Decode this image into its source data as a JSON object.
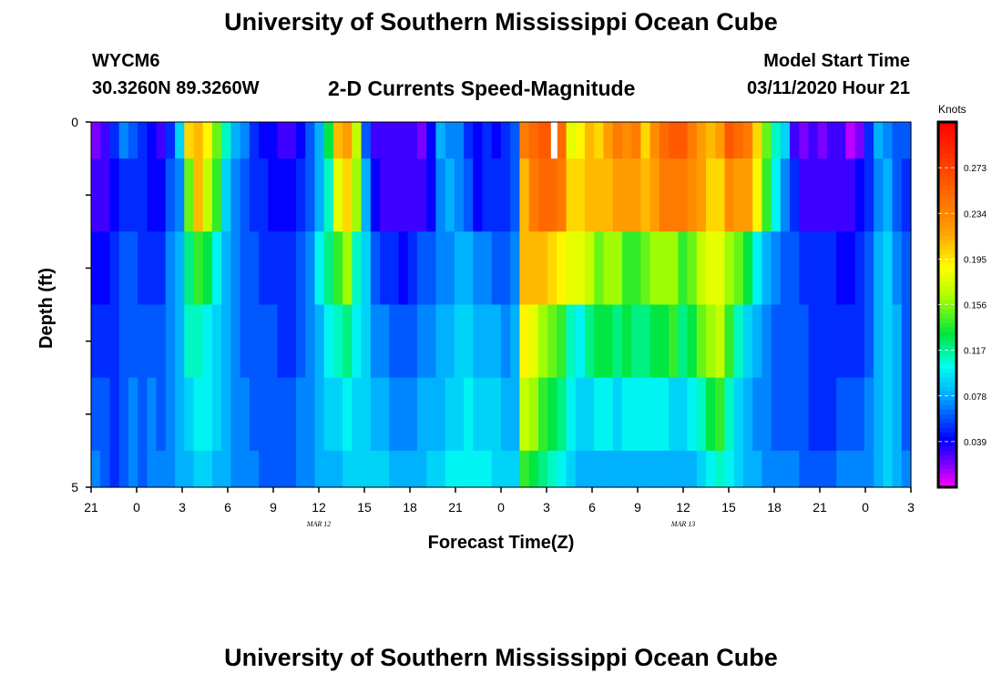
{
  "header": {
    "title": "University of Southern Mississippi Ocean Cube",
    "station": "WYCM6",
    "coords": "30.3260N 89.3260W",
    "subtitle": "2-D Currents Speed-Magnitude",
    "model_start_label": "Model Start Time",
    "model_start_value": "03/11/2020 Hour 21"
  },
  "footer": {
    "title": "University of Southern Mississippi Ocean Cube"
  },
  "chart_data": {
    "type": "heatmap",
    "title": "2-D Currents Speed-Magnitude",
    "xlabel": "Forecast Time(Z)",
    "ylabel": "Depth (ft)",
    "colorbar_label": "Knots",
    "colorbar_ticks": [
      "0.039",
      "0.078",
      "0.117",
      "0.156",
      "0.195",
      "0.234",
      "0.273"
    ],
    "color_range": [
      0.0,
      0.312
    ],
    "x_ticks": [
      "21",
      "0",
      "3",
      "6",
      "9",
      "12",
      "15",
      "18",
      "21",
      "0",
      "3",
      "6",
      "9",
      "12",
      "15",
      "18",
      "21",
      "0",
      "3"
    ],
    "date_labels": [
      {
        "text": "MAR 12",
        "hour_index": 15
      },
      {
        "text": "MAR 13",
        "hour_index": 39
      }
    ],
    "y_ticks": [
      "0",
      "5"
    ],
    "ylim": [
      0,
      5
    ],
    "time_range_hours": [
      0,
      54
    ],
    "depth_levels_ft": [
      0,
      0.5,
      1.5,
      2.5,
      3.5,
      4.5,
      5
    ],
    "missing_cells": [
      {
        "hour": 30.5,
        "level": 0
      }
    ],
    "values": [
      [
        0.02,
        0.03,
        0.05,
        0.07,
        0.06,
        0.05,
        0.04,
        0.03,
        0.05,
        0.09,
        0.2,
        0.21,
        0.19,
        0.15,
        0.11,
        0.08,
        0.07,
        0.05,
        0.04,
        0.04,
        0.03,
        0.03,
        0.04,
        0.06,
        0.08,
        0.13,
        0.21,
        0.22,
        0.17,
        0.06,
        0.03,
        0.03,
        0.03,
        0.03,
        0.03,
        0.02,
        0.04,
        0.08,
        0.07,
        0.07,
        0.05,
        0.04,
        0.05,
        0.04,
        0.05,
        0.06,
        0.24,
        0.25,
        0.26,
        0.26,
        0.25,
        0.18,
        0.19,
        0.21,
        0.2,
        0.22,
        0.24,
        0.23,
        0.24,
        0.2,
        0.23,
        0.25,
        0.26,
        0.26,
        0.24,
        0.22,
        0.21,
        0.22,
        0.26,
        0.25,
        0.24,
        0.2,
        0.15,
        0.11,
        0.09,
        0.03,
        0.02,
        0.03,
        0.02,
        0.03,
        0.03,
        0.01,
        0.02,
        0.05,
        0.08,
        0.07,
        0.06,
        0.06
      ],
      [
        0.03,
        0.03,
        0.04,
        0.05,
        0.05,
        0.05,
        0.04,
        0.04,
        0.06,
        0.07,
        0.15,
        0.21,
        0.17,
        0.14,
        0.09,
        0.07,
        0.06,
        0.05,
        0.05,
        0.04,
        0.04,
        0.04,
        0.05,
        0.06,
        0.08,
        0.11,
        0.18,
        0.2,
        0.16,
        0.08,
        0.04,
        0.03,
        0.03,
        0.03,
        0.03,
        0.03,
        0.04,
        0.07,
        0.08,
        0.07,
        0.06,
        0.04,
        0.05,
        0.05,
        0.05,
        0.06,
        0.21,
        0.24,
        0.25,
        0.25,
        0.24,
        0.2,
        0.2,
        0.21,
        0.21,
        0.21,
        0.22,
        0.22,
        0.22,
        0.21,
        0.22,
        0.24,
        0.24,
        0.24,
        0.23,
        0.22,
        0.2,
        0.2,
        0.23,
        0.22,
        0.22,
        0.19,
        0.14,
        0.1,
        0.07,
        0.05,
        0.03,
        0.03,
        0.03,
        0.03,
        0.03,
        0.03,
        0.04,
        0.05,
        0.07,
        0.08,
        0.06,
        0.05
      ],
      [
        0.04,
        0.04,
        0.05,
        0.06,
        0.06,
        0.05,
        0.05,
        0.05,
        0.07,
        0.08,
        0.12,
        0.14,
        0.13,
        0.1,
        0.08,
        0.07,
        0.06,
        0.06,
        0.05,
        0.05,
        0.05,
        0.05,
        0.06,
        0.07,
        0.1,
        0.12,
        0.14,
        0.16,
        0.11,
        0.09,
        0.06,
        0.05,
        0.05,
        0.04,
        0.05,
        0.06,
        0.06,
        0.07,
        0.07,
        0.08,
        0.08,
        0.07,
        0.07,
        0.06,
        0.06,
        0.07,
        0.21,
        0.21,
        0.21,
        0.2,
        0.19,
        0.18,
        0.18,
        0.17,
        0.15,
        0.16,
        0.16,
        0.14,
        0.14,
        0.15,
        0.16,
        0.16,
        0.16,
        0.14,
        0.15,
        0.17,
        0.18,
        0.18,
        0.16,
        0.15,
        0.13,
        0.1,
        0.08,
        0.07,
        0.06,
        0.06,
        0.05,
        0.05,
        0.05,
        0.05,
        0.04,
        0.04,
        0.05,
        0.06,
        0.08,
        0.09,
        0.07,
        0.06
      ],
      [
        0.05,
        0.05,
        0.05,
        0.06,
        0.06,
        0.06,
        0.06,
        0.06,
        0.07,
        0.08,
        0.11,
        0.11,
        0.1,
        0.09,
        0.08,
        0.07,
        0.06,
        0.06,
        0.06,
        0.06,
        0.05,
        0.05,
        0.06,
        0.07,
        0.08,
        0.1,
        0.11,
        0.12,
        0.1,
        0.09,
        0.07,
        0.07,
        0.06,
        0.06,
        0.06,
        0.07,
        0.07,
        0.08,
        0.08,
        0.09,
        0.09,
        0.08,
        0.08,
        0.08,
        0.07,
        0.08,
        0.19,
        0.18,
        0.16,
        0.15,
        0.14,
        0.11,
        0.1,
        0.12,
        0.13,
        0.13,
        0.12,
        0.13,
        0.12,
        0.12,
        0.13,
        0.13,
        0.14,
        0.12,
        0.13,
        0.15,
        0.16,
        0.17,
        0.14,
        0.11,
        0.09,
        0.08,
        0.07,
        0.06,
        0.06,
        0.06,
        0.06,
        0.05,
        0.05,
        0.05,
        0.05,
        0.05,
        0.05,
        0.06,
        0.08,
        0.09,
        0.08,
        0.06
      ],
      [
        0.06,
        0.06,
        0.05,
        0.06,
        0.07,
        0.06,
        0.07,
        0.06,
        0.07,
        0.08,
        0.09,
        0.1,
        0.1,
        0.09,
        0.08,
        0.07,
        0.07,
        0.06,
        0.06,
        0.06,
        0.06,
        0.06,
        0.07,
        0.07,
        0.08,
        0.09,
        0.09,
        0.1,
        0.09,
        0.09,
        0.08,
        0.08,
        0.07,
        0.07,
        0.07,
        0.08,
        0.08,
        0.08,
        0.09,
        0.09,
        0.1,
        0.09,
        0.09,
        0.09,
        0.08,
        0.08,
        0.17,
        0.16,
        0.14,
        0.13,
        0.12,
        0.1,
        0.09,
        0.09,
        0.1,
        0.1,
        0.09,
        0.1,
        0.1,
        0.1,
        0.1,
        0.1,
        0.09,
        0.09,
        0.1,
        0.11,
        0.13,
        0.14,
        0.11,
        0.09,
        0.08,
        0.07,
        0.07,
        0.06,
        0.06,
        0.06,
        0.06,
        0.05,
        0.05,
        0.05,
        0.06,
        0.06,
        0.06,
        0.07,
        0.08,
        0.09,
        0.08,
        0.06
      ],
      [
        0.07,
        0.06,
        0.05,
        0.06,
        0.07,
        0.06,
        0.07,
        0.07,
        0.07,
        0.08,
        0.08,
        0.09,
        0.09,
        0.08,
        0.08,
        0.07,
        0.07,
        0.07,
        0.06,
        0.06,
        0.06,
        0.06,
        0.07,
        0.07,
        0.08,
        0.08,
        0.08,
        0.09,
        0.09,
        0.09,
        0.09,
        0.09,
        0.08,
        0.08,
        0.08,
        0.08,
        0.09,
        0.09,
        0.1,
        0.1,
        0.1,
        0.1,
        0.1,
        0.09,
        0.09,
        0.09,
        0.14,
        0.13,
        0.12,
        0.11,
        0.1,
        0.09,
        0.08,
        0.08,
        0.08,
        0.08,
        0.08,
        0.08,
        0.08,
        0.08,
        0.08,
        0.08,
        0.08,
        0.08,
        0.08,
        0.09,
        0.1,
        0.11,
        0.1,
        0.09,
        0.08,
        0.08,
        0.07,
        0.07,
        0.07,
        0.07,
        0.06,
        0.06,
        0.06,
        0.06,
        0.07,
        0.07,
        0.07,
        0.07,
        0.08,
        0.09,
        0.08,
        0.07
      ]
    ]
  }
}
